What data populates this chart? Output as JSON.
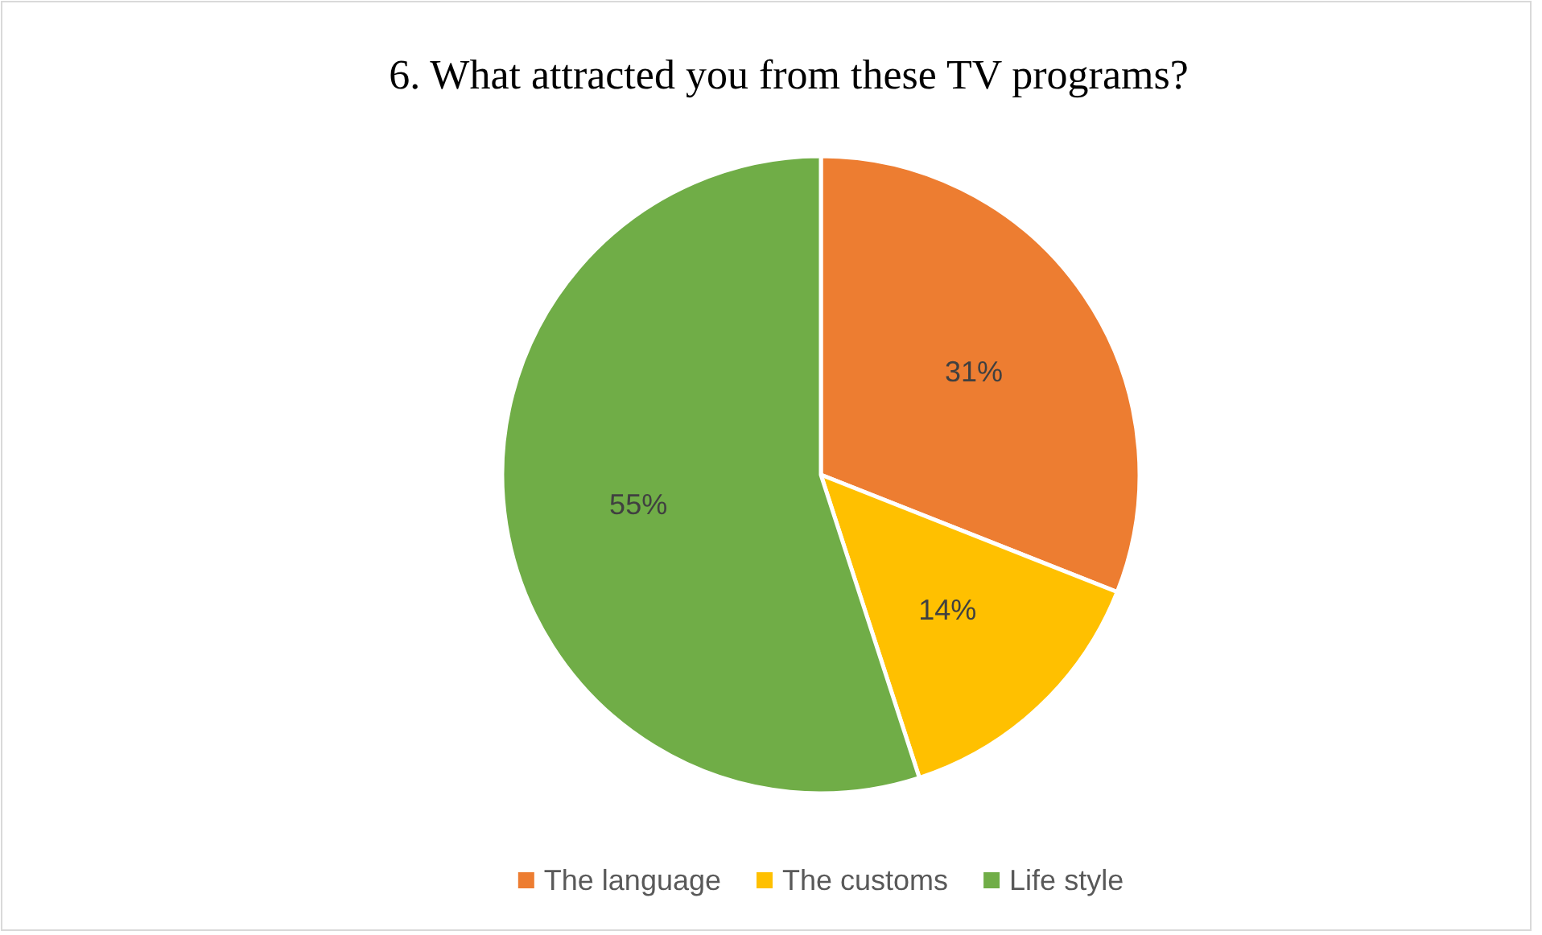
{
  "chart_data": {
    "type": "pie",
    "title": "6. What attracted you from these TV programs?",
    "categories": [
      "The language",
      "The customs",
      "Life style"
    ],
    "values": [
      31,
      14,
      55
    ],
    "colors": [
      "#ed7d31",
      "#ffc000",
      "#70ad47"
    ],
    "value_labels": [
      "31%",
      "14%",
      "55%"
    ],
    "legend": "bottom"
  }
}
